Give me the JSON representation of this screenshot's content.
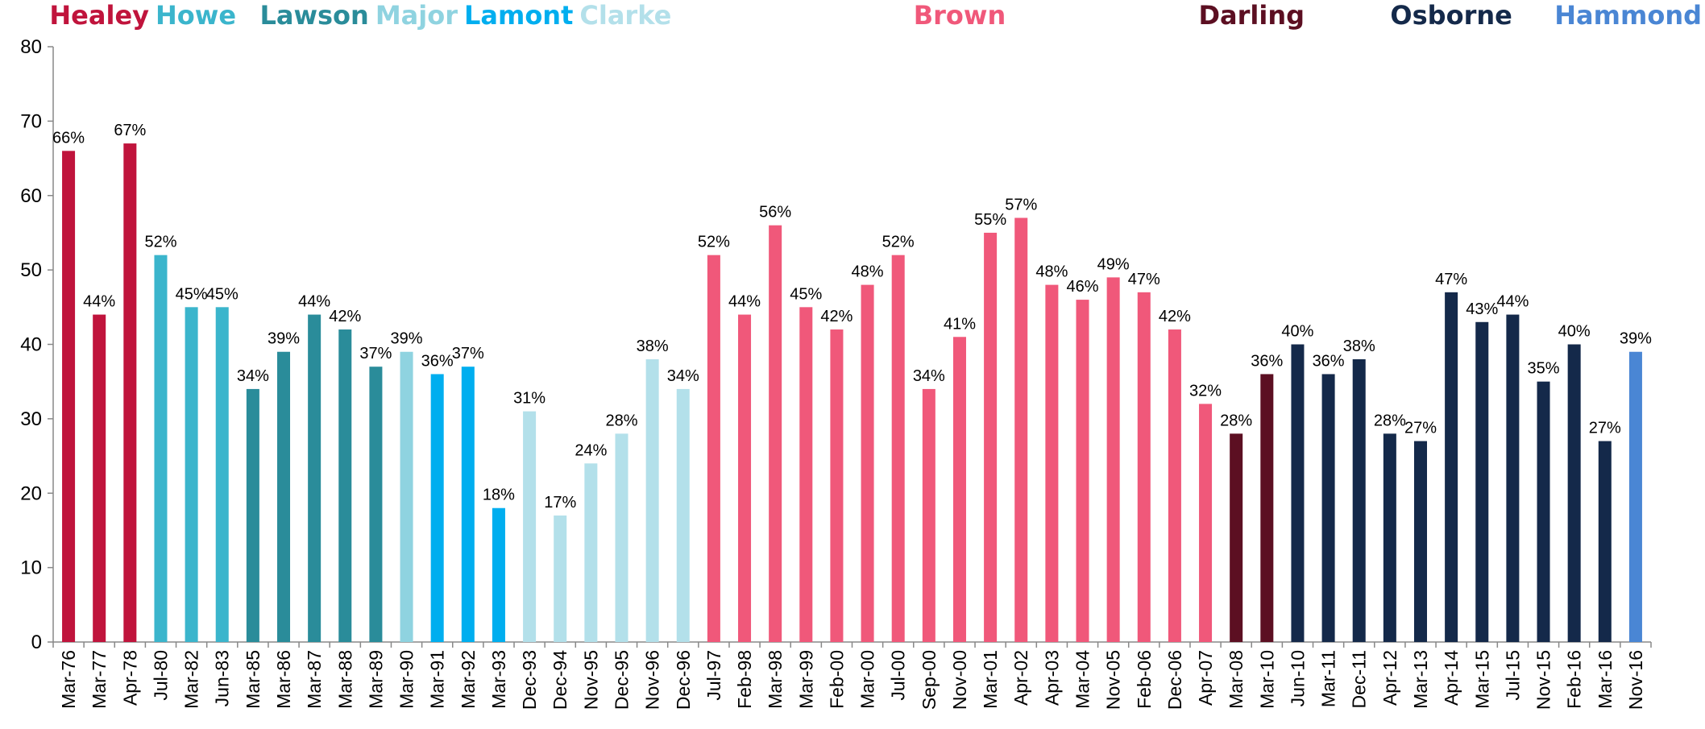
{
  "chart_data": {
    "type": "bar",
    "ylim": [
      0,
      80
    ],
    "yticks": [
      0,
      10,
      20,
      30,
      40,
      50,
      60,
      70,
      80
    ],
    "grid": false,
    "series": [
      {
        "name": "Healey",
        "color": "#c0143c",
        "categories": [
          "Mar-76",
          "Mar-77",
          "Apr-78"
        ],
        "values": [
          66,
          44,
          67
        ],
        "value_labels": [
          "66%",
          "44%",
          "67%"
        ]
      },
      {
        "name": "Howe",
        "color": "#3bb5cc",
        "categories": [
          "Jul-80",
          "Mar-82",
          "Jun-83"
        ],
        "values": [
          52,
          45,
          45
        ],
        "value_labels": [
          "52%",
          "45%",
          "45%"
        ]
      },
      {
        "name": "Lawson",
        "color": "#2a8c9a",
        "categories": [
          "Mar-85",
          "Mar-86",
          "Mar-87",
          "Mar-88",
          "Mar-89"
        ],
        "values": [
          34,
          39,
          44,
          42,
          37
        ],
        "value_labels": [
          "34%",
          "39%",
          "44%",
          "42%",
          "37%"
        ]
      },
      {
        "name": "Major",
        "color": "#8fd3e0",
        "categories": [
          "Mar-90"
        ],
        "values": [
          39
        ],
        "value_labels": [
          "39%"
        ]
      },
      {
        "name": "Lamont",
        "color": "#00aeef",
        "categories": [
          "Mar-91",
          "Mar-92",
          "Mar-93"
        ],
        "values": [
          36,
          37,
          18
        ],
        "value_labels": [
          "36%",
          "37%",
          "18%"
        ]
      },
      {
        "name": "Clarke",
        "color": "#b3e0ea",
        "categories": [
          "Dec-93",
          "Dec-94",
          "Nov-95",
          "Dec-95",
          "Nov-96",
          "Dec-96"
        ],
        "values": [
          31,
          17,
          24,
          28,
          38,
          34
        ],
        "value_labels": [
          "31%",
          "17%",
          "24%",
          "28%",
          "38%",
          "34%"
        ]
      },
      {
        "name": "Brown",
        "color": "#f0587a",
        "categories": [
          "Jul-97",
          "Feb-98",
          "Mar-98",
          "Mar-99",
          "Feb-00",
          "Mar-00",
          "Jul-00",
          "Sep-00",
          "Nov-00",
          "Mar-01",
          "Apr-02",
          "Apr-03",
          "Mar-04",
          "Nov-05",
          "Feb-06",
          "Dec-06",
          "Apr-07"
        ],
        "values": [
          52,
          44,
          56,
          45,
          42,
          48,
          52,
          34,
          41,
          55,
          57,
          48,
          46,
          49,
          47,
          42,
          32
        ],
        "value_labels": [
          "52%",
          "44%",
          "56%",
          "45%",
          "42%",
          "48%",
          "52%",
          "34%",
          "41%",
          "55%",
          "57%",
          "48%",
          "46%",
          "49%",
          "47%",
          "42%",
          "32%"
        ]
      },
      {
        "name": "Darling",
        "color": "#5c0f22",
        "categories": [
          "Mar-08",
          "Mar-10"
        ],
        "values": [
          28,
          36
        ],
        "value_labels": [
          "28%",
          "36%"
        ]
      },
      {
        "name": "Osborne",
        "color": "#14294a",
        "categories": [
          "Jun-10",
          "Mar-11",
          "Dec-11",
          "Apr-12",
          "Mar-13",
          "Apr-14",
          "Mar-15",
          "Jul-15",
          "Nov-15",
          "Feb-16",
          "Mar-16"
        ],
        "values": [
          40,
          36,
          38,
          28,
          27,
          47,
          43,
          44,
          35,
          40,
          27
        ],
        "value_labels": [
          "40%",
          "36%",
          "38%",
          "28%",
          "27%",
          "47%",
          "43%",
          "44%",
          "35%",
          "40%",
          "27%"
        ]
      },
      {
        "name": "Hammond",
        "color": "#4a86d4",
        "categories": [
          "Nov-16"
        ],
        "values": [
          39
        ],
        "value_labels": [
          "39%"
        ]
      }
    ]
  }
}
